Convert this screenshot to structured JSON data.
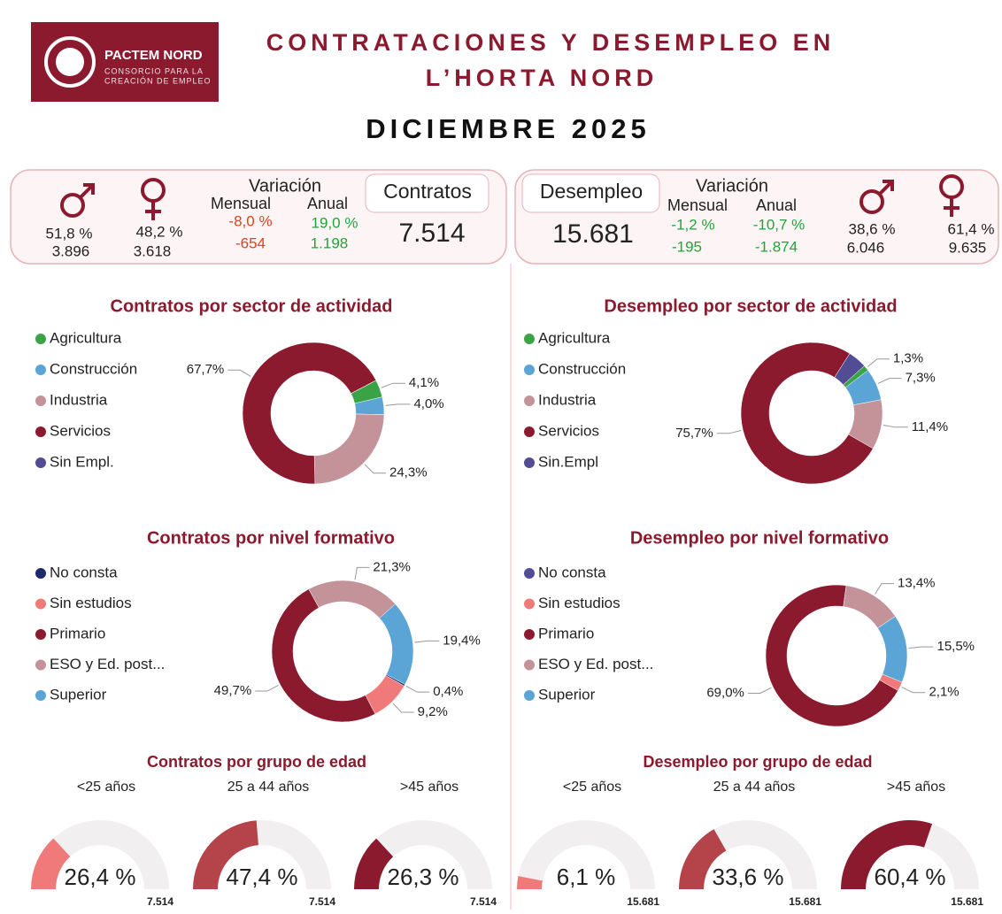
{
  "header": {
    "logo_name": "PACTEM NORD",
    "logo_line1": "CONSORCIO PARA LA",
    "logo_line2": "CREACIÓN DE EMPLEO",
    "title_line1": "CONTRATACIONES Y DESEMPLEO EN",
    "title_line2": "L’HORTA NORD",
    "period": "DICIEMBRE 2025"
  },
  "kpis": [
    {
      "label": "Contratos",
      "total": "7.514",
      "men": {
        "pct": "51,8 %",
        "count": "3.896"
      },
      "women": {
        "pct": "48,2 %",
        "count": "3.618"
      },
      "variation": {
        "title": "Variación",
        "monthly": {
          "label": "Mensual",
          "pct": "-8,0 %",
          "count": "-654",
          "color": "#d9441c"
        },
        "annual": {
          "label": "Anual",
          "pct": "19,0 %",
          "count": "1.198",
          "color": "#22a33a"
        }
      }
    },
    {
      "label": "Desempleo",
      "total": "15.681",
      "men": {
        "pct": "38,6 %",
        "count": "6.046"
      },
      "women": {
        "pct": "61,4 %",
        "count": "9.635"
      },
      "variation": {
        "title": "Variación",
        "monthly": {
          "label": "Mensual",
          "pct": "-1,2 %",
          "count": "-195",
          "color": "#22a33a"
        },
        "annual": {
          "label": "Anual",
          "pct": "-10,7 %",
          "count": "-1.874",
          "color": "#22a33a"
        }
      }
    }
  ],
  "chart_data": [
    {
      "type": "donut",
      "title": "Contratos por sector de actividad",
      "categories": [
        "Agricultura",
        "Construcción",
        "Industria",
        "Servicios",
        "Sin Empl."
      ],
      "values": [
        4.1,
        4.0,
        24.3,
        67.7,
        0
      ],
      "value_labels": [
        "4,1%",
        "4,0%",
        "24,3%",
        "67,7%",
        null
      ],
      "colors": [
        "#3aa346",
        "#5aa5d6",
        "#c4939a",
        "#8b1a2e",
        "#524c94"
      ]
    },
    {
      "type": "donut",
      "title": "Desempleo por sector de actividad",
      "categories": [
        "Agricultura",
        "Construcción",
        "Industria",
        "Servicios",
        "Sin.Empl"
      ],
      "values": [
        1.3,
        7.3,
        11.4,
        75.7,
        4.3
      ],
      "value_labels": [
        "1,3%",
        "7,3%",
        "11,4%",
        "75,7%",
        null
      ],
      "colors": [
        "#3aa346",
        "#5aa5d6",
        "#c4939a",
        "#8b1a2e",
        "#524c94"
      ]
    },
    {
      "type": "donut",
      "title": "Contratos por nivel formativo",
      "categories": [
        "No consta",
        "Sin estudios",
        "Primario",
        "ESO y Ed. post...",
        "Superior"
      ],
      "values": [
        0.4,
        9.2,
        49.7,
        21.3,
        19.4
      ],
      "value_labels": [
        "0,4%",
        "9,2%",
        "49,7%",
        "21,3%",
        "19,4%"
      ],
      "colors": [
        "#1f2a6b",
        "#f07a7a",
        "#8b1a2e",
        "#c4939a",
        "#5aa5d6"
      ]
    },
    {
      "type": "donut",
      "title": "Desempleo por nivel formativo",
      "categories": [
        "No consta",
        "Sin estudios",
        "Primario",
        "ESO y Ed. post...",
        "Superior"
      ],
      "values": [
        0,
        2.1,
        69.0,
        13.4,
        15.5
      ],
      "value_labels": [
        null,
        "2,1%",
        "69,0%",
        "13,4%",
        "15,5%"
      ],
      "colors": [
        "#524c94",
        "#f07a7a",
        "#8b1a2e",
        "#c4939a",
        "#5aa5d6"
      ]
    },
    {
      "type": "gauge",
      "title": "Contratos por grupo de edad",
      "categories": [
        "<25 años",
        "25 a 44 años",
        ">45 años"
      ],
      "values": [
        26.4,
        47.4,
        26.3
      ],
      "value_labels": [
        "26,4 %",
        "47,4 %",
        "26,3 %"
      ],
      "total": {
        "value": 7514,
        "label": "7.514"
      },
      "ylim": [
        0,
        100
      ],
      "colors": [
        "#f07a7a",
        "#b5434a",
        "#8b1a2e"
      ]
    },
    {
      "type": "gauge",
      "title": "Desempleo por grupo de edad",
      "categories": [
        "<25 años",
        "25 a 44 años",
        ">45 años"
      ],
      "values": [
        6.1,
        33.6,
        60.4
      ],
      "value_labels": [
        "6,1 %",
        "33,6 %",
        "60,4 %"
      ],
      "total": {
        "value": 15681,
        "label": "15.681"
      },
      "ylim": [
        0,
        100
      ],
      "colors": [
        "#f07a7a",
        "#b5434a",
        "#8b1a2e"
      ]
    }
  ]
}
